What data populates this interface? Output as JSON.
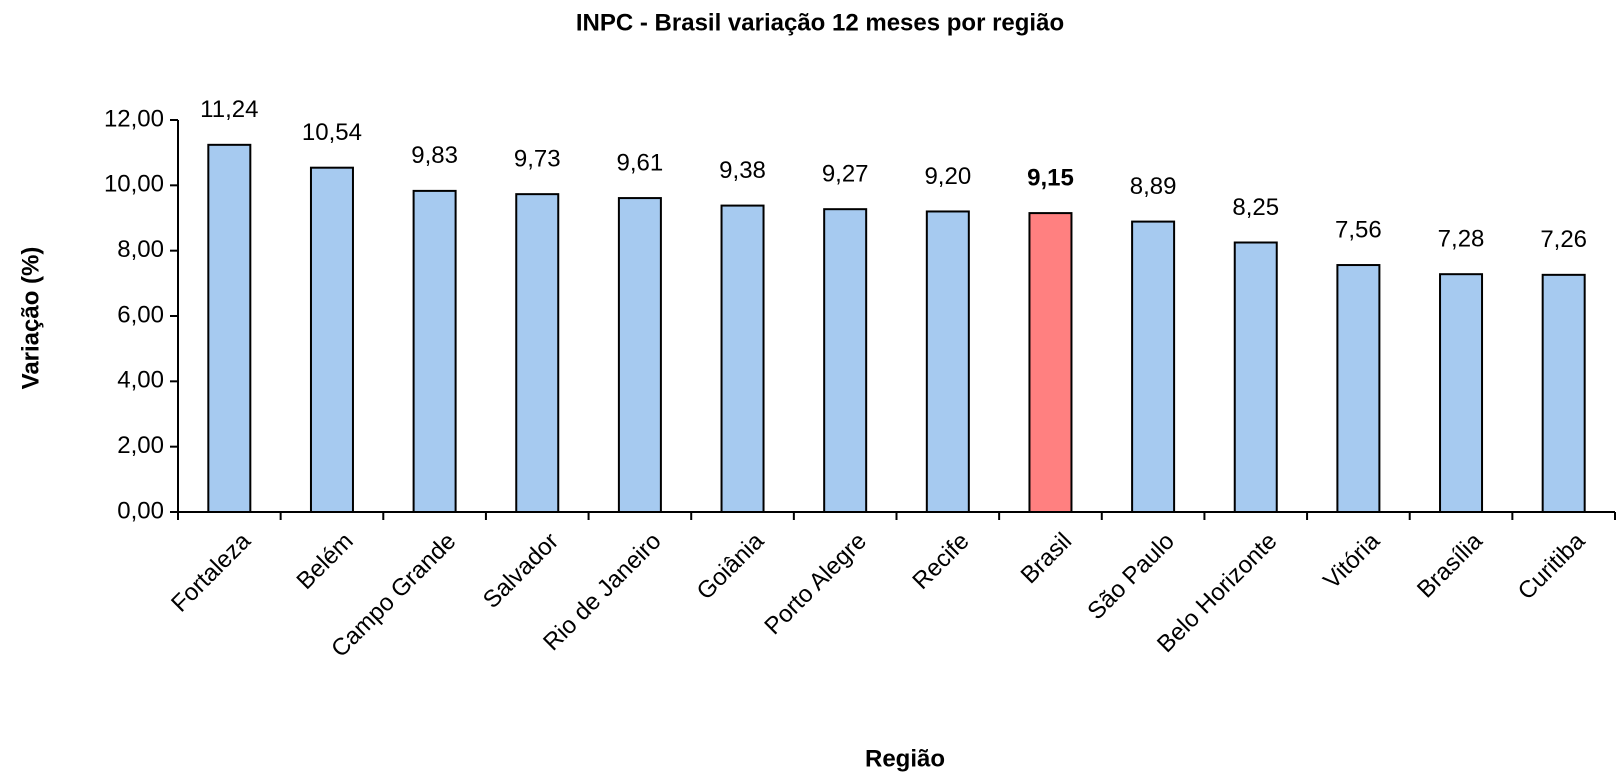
{
  "chart_data": {
    "type": "bar",
    "title": "INPC - Brasil variação 12 meses por região",
    "x_label": "Região",
    "y_label": "Variação (%)",
    "categories": [
      "Fortaleza",
      "Belém",
      "Campo Grande",
      "Salvador",
      "Rio de Janeiro",
      "Goiânia",
      "Porto Alegre",
      "Recife",
      "Brasil",
      "São Paulo",
      "Belo Horizonte",
      "Vitória",
      "Brasília",
      "Curitiba"
    ],
    "values": [
      11.24,
      10.54,
      9.83,
      9.73,
      9.61,
      9.38,
      9.27,
      9.2,
      9.15,
      8.89,
      8.25,
      7.56,
      7.28,
      7.26
    ],
    "value_labels": [
      "11,24",
      "10,54",
      "9,83",
      "9,73",
      "9,61",
      "9,38",
      "9,27",
      "9,20",
      "9,15",
      "8,89",
      "8,25",
      "7,56",
      "7,28",
      "7,26"
    ],
    "colors": [
      "#a6caf0",
      "#a6caf0",
      "#a6caf0",
      "#a6caf0",
      "#a6caf0",
      "#a6caf0",
      "#a6caf0",
      "#a6caf0",
      "#ff8080",
      "#a6caf0",
      "#a6caf0",
      "#a6caf0",
      "#a6caf0",
      "#a6caf0"
    ],
    "ylim": [
      0,
      12
    ],
    "yticks": [
      {
        "value": 0,
        "label": "0,00"
      },
      {
        "value": 2,
        "label": "2,00"
      },
      {
        "value": 4,
        "label": "4,00"
      },
      {
        "value": 6,
        "label": "6,00"
      },
      {
        "value": 8,
        "label": "8,00"
      },
      {
        "value": 10,
        "label": "10,00"
      },
      {
        "value": 12,
        "label": "12,00"
      }
    ],
    "grid": false
  }
}
